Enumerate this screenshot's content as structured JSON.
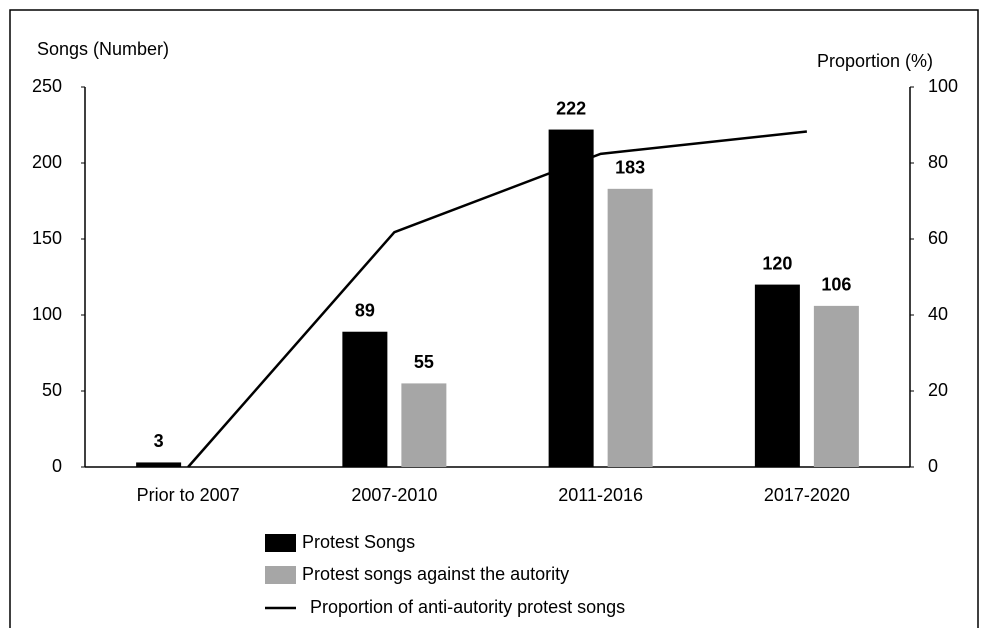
{
  "chart_data": {
    "type": "bar",
    "ylabel": "Songs (Number)",
    "y2label": "Proportion (%)",
    "categories": [
      "Prior to 2007",
      "2007-2010",
      "2011-2016",
      "2017-2020"
    ],
    "series": [
      {
        "name": "Protest Songs",
        "type": "bar",
        "color": "#000000",
        "values": [
          3,
          89,
          222,
          120
        ]
      },
      {
        "name": "Protest songs against the autority",
        "type": "bar",
        "color": "#a6a6a6",
        "values": [
          null,
          55,
          183,
          106
        ]
      },
      {
        "name": "Proportion of anti-autority protest songs",
        "type": "line",
        "axis": "y2",
        "color": "#000000",
        "values": [
          0,
          61.8,
          82.4,
          88.3
        ]
      }
    ],
    "ylim": [
      0,
      250
    ],
    "yticks": [
      0,
      50,
      100,
      150,
      200,
      250
    ],
    "y2lim": [
      0,
      100
    ],
    "y2ticks": [
      0,
      20,
      40,
      60,
      80,
      100
    ],
    "grid": false
  }
}
